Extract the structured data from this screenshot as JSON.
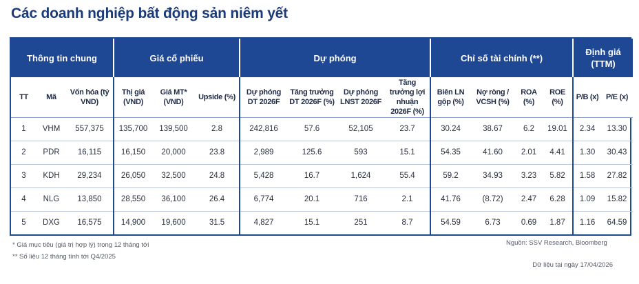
{
  "title": "Các doanh nghiệp bất động sản niêm yết",
  "groups": {
    "general": "Thông tin chung",
    "price": "Giá cổ phiếu",
    "forecast": "Dự phóng",
    "financial": "Chỉ số tài chính (**)",
    "valuation": "Định giá (TTM)"
  },
  "columns": {
    "tt": "TT",
    "ma": "Mã",
    "von_hoa": "Vốn hóa (tỷ VND)",
    "thi_gia": "Thị giá (VND)",
    "gia_mt": "Giá MT* (VND)",
    "upside": "Upside (%)",
    "du_phong_dt": "Dự phóng DT 2026F",
    "tang_truong_dt": "Tăng trưởng DT 2026F (%)",
    "du_phong_lnst": "Dự phóng LNST 2026F",
    "tang_truong_ln": "Tăng trưởng lợi nhuận 2026F (%)",
    "bien_ln": "Biên LN gộp (%)",
    "no_rong": "Nợ ròng / VCSH (%)",
    "roa": "ROA (%)",
    "roe": "ROE (%)",
    "pb": "P/B (x)",
    "pe": "P/E (x)"
  },
  "rows": [
    {
      "tt": "1",
      "ma": "VHM",
      "von_hoa": "557,375",
      "thi_gia": "135,700",
      "gia_mt": "139,500",
      "upside": "2.8",
      "du_phong_dt": "242,816",
      "tang_truong_dt": "57.6",
      "du_phong_lnst": "52,105",
      "tang_truong_ln": "23.7",
      "bien_ln": "30.24",
      "no_rong": "38.67",
      "roa": "6.2",
      "roe": "19.01",
      "pb": "2.34",
      "pe": "13.30"
    },
    {
      "tt": "2",
      "ma": "PDR",
      "von_hoa": "16,115",
      "thi_gia": "16,150",
      "gia_mt": "20,000",
      "upside": "23.8",
      "du_phong_dt": "2,989",
      "tang_truong_dt": "125.6",
      "du_phong_lnst": "593",
      "tang_truong_ln": "15.1",
      "bien_ln": "54.35",
      "no_rong": "41.60",
      "roa": "2.01",
      "roe": "4.41",
      "pb": "1.30",
      "pe": "30.43"
    },
    {
      "tt": "3",
      "ma": "KDH",
      "von_hoa": "29,234",
      "thi_gia": "26,050",
      "gia_mt": "32,500",
      "upside": "24.8",
      "du_phong_dt": "5,428",
      "tang_truong_dt": "16.7",
      "du_phong_lnst": "1,624",
      "tang_truong_ln": "55.4",
      "bien_ln": "59.2",
      "no_rong": "34.93",
      "roa": "3.23",
      "roe": "5.82",
      "pb": "1.58",
      "pe": "27.82"
    },
    {
      "tt": "4",
      "ma": "NLG",
      "von_hoa": "13,850",
      "thi_gia": "28,550",
      "gia_mt": "36,100",
      "upside": "26.4",
      "du_phong_dt": "6,774",
      "tang_truong_dt": "20.1",
      "du_phong_lnst": "716",
      "tang_truong_ln": "2.1",
      "bien_ln": "41.76",
      "no_rong": "(8.72)",
      "roa": "2.47",
      "roe": "6.28",
      "pb": "1.09",
      "pe": "15.82"
    },
    {
      "tt": "5",
      "ma": "DXG",
      "von_hoa": "16,575",
      "thi_gia": "14,900",
      "gia_mt": "19,600",
      "upside": "31.5",
      "du_phong_dt": "4,827",
      "tang_truong_dt": "15.1",
      "du_phong_lnst": "251",
      "tang_truong_ln": "8.7",
      "bien_ln": "54.59",
      "no_rong": "6.73",
      "roa": "0.69",
      "roe": "1.87",
      "pb": "1.16",
      "pe": "64.59"
    }
  ],
  "footnotes": {
    "note1": "* Giá mục tiêu (giá trị hợp lý) trong 12 tháng tới",
    "note2": "** Số liệu 12 tháng tính tới Q4/2025",
    "source": "Nguồn: SSV Research, Bloomberg",
    "date": "Dữ liệu tại ngày 17/04/2026"
  },
  "colors": {
    "header_bg": "#1e4794",
    "title": "#1a3a7a"
  }
}
